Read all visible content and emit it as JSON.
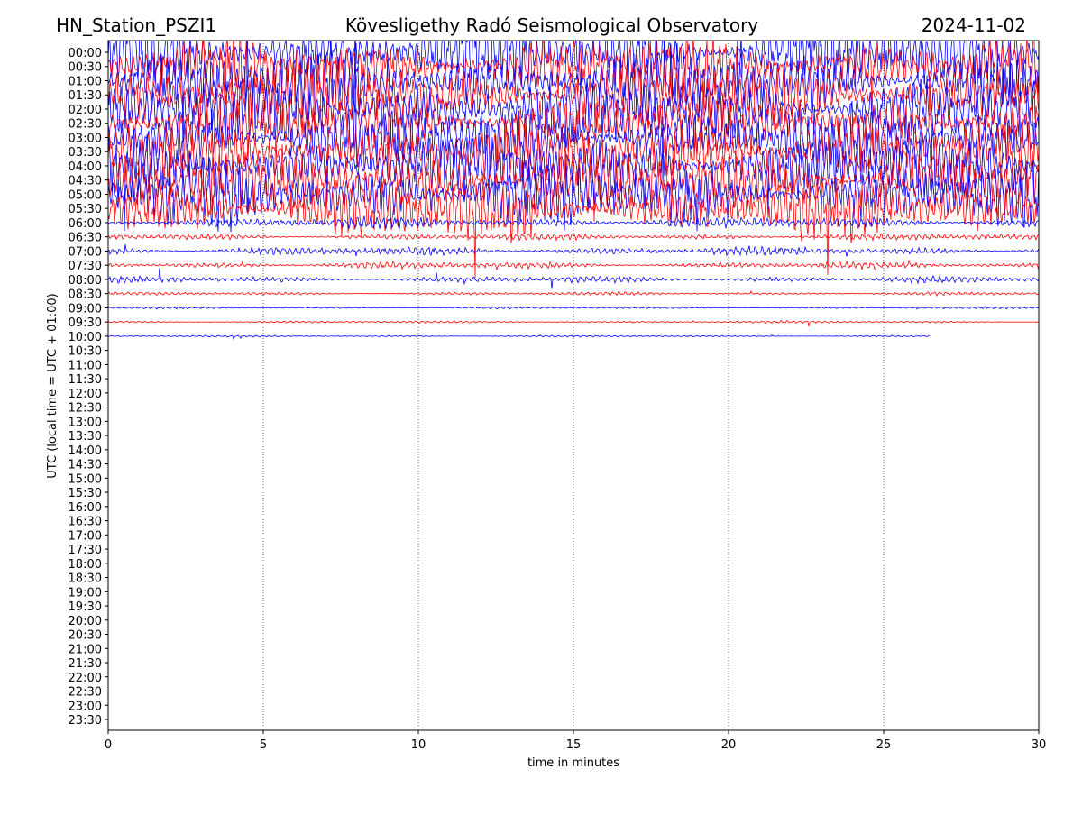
{
  "chart_data": {
    "type": "helicorder",
    "title_left": "HN_Station_PSZI1",
    "title": "Kövesligethy Radó Seismological Observatory",
    "title_right": "2024-11-02",
    "xlabel": "time in minutes",
    "ylabel": "UTC (local time = UTC + 01:00)",
    "xlim": [
      0,
      30
    ],
    "xticks": [
      0,
      5,
      10,
      15,
      20,
      25,
      30
    ],
    "grid": true,
    "categories": [
      "00:00",
      "00:30",
      "01:00",
      "01:30",
      "02:00",
      "02:30",
      "03:00",
      "03:30",
      "04:00",
      "04:30",
      "05:00",
      "05:30",
      "06:00",
      "06:30",
      "07:00",
      "07:30",
      "08:00",
      "08:30",
      "09:00",
      "09:30",
      "10:00",
      "10:30",
      "11:00",
      "11:30",
      "12:00",
      "12:30",
      "13:00",
      "13:30",
      "14:00",
      "14:30",
      "15:00",
      "15:30",
      "16:00",
      "16:30",
      "17:00",
      "17:30",
      "18:00",
      "18:30",
      "19:00",
      "19:30",
      "20:00",
      "20:30",
      "21:00",
      "21:30",
      "22:00",
      "22:30",
      "23:00",
      "23:30"
    ],
    "colors": [
      "#0000ff",
      "#ff0000"
    ],
    "traces": {
      "amplitude": [
        3,
        3,
        3,
        3,
        3,
        3,
        3,
        3,
        3,
        3,
        3,
        3,
        0.5,
        0.3,
        0.4,
        0.3,
        0.3,
        0.15,
        0.1,
        0.1,
        0.08
      ],
      "end": [
        30,
        30,
        30,
        30,
        30,
        30,
        30,
        30,
        30,
        30,
        30,
        30,
        30,
        30,
        30,
        30,
        30,
        30,
        30,
        30,
        26.5
      ]
    }
  }
}
